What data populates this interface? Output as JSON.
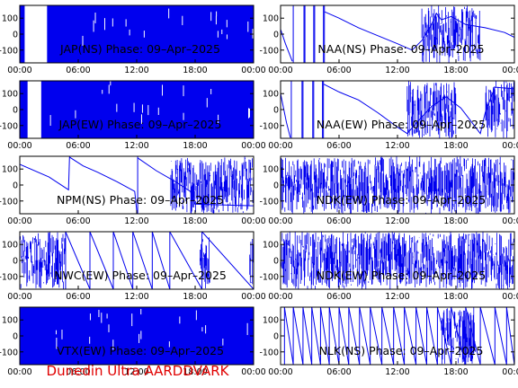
{
  "footer": {
    "label": "Dunedin Ultra AARDDVARK"
  },
  "style": {
    "trace_color": "#0000ee",
    "axis_color": "#000000",
    "footer_color": "#e00000"
  },
  "chart_data": [
    {
      "type": "line",
      "title": "JAP(NS) Phase: 09–Apr–2025",
      "xlabel": "",
      "ylabel": "",
      "x_range": [
        "00:00",
        "24:00"
      ],
      "ylim": [
        -180,
        180
      ],
      "y_ticks": [
        100,
        0,
        -100
      ],
      "x_ticks": [
        "00:00",
        "06:00",
        "12:00",
        "18:00",
        "00:00"
      ],
      "pattern": "noise",
      "noise_spans": [
        [
          0.0,
          0.5
        ],
        [
          2.8,
          24.0
        ]
      ],
      "saturated": true
    },
    {
      "type": "line",
      "title": "NAA(NS) Phase: 09–Apr–2025",
      "xlabel": "",
      "ylabel": "",
      "x_range": [
        "00:00",
        "24:00"
      ],
      "ylim": [
        -180,
        180
      ],
      "y_ticks": [
        100,
        0,
        -100
      ],
      "x_ticks": [
        "00:00",
        "06:00",
        "12:00",
        "18:00",
        "00:00"
      ],
      "pattern": "curve",
      "points": [
        [
          0,
          30
        ],
        [
          0.5,
          -60
        ],
        [
          1.2,
          -170
        ],
        [
          1.3,
          170
        ],
        [
          2.4,
          -175
        ],
        [
          2.5,
          175
        ],
        [
          3.4,
          -170
        ],
        [
          3.5,
          170
        ],
        [
          4.4,
          -175
        ],
        [
          4.5,
          140
        ],
        [
          6,
          100
        ],
        [
          8,
          40
        ],
        [
          10,
          -10
        ],
        [
          12,
          -60
        ],
        [
          13.5,
          -100
        ],
        [
          14.5,
          -40
        ],
        [
          15.5,
          60
        ],
        [
          16,
          130
        ],
        [
          16.5,
          90
        ],
        [
          17.5,
          110
        ],
        [
          19,
          60
        ],
        [
          21,
          40
        ],
        [
          23,
          10
        ],
        [
          24,
          -20
        ]
      ],
      "noise_spans": [
        [
          14.5,
          20.5
        ]
      ]
    },
    {
      "type": "line",
      "title": "JAP(EW) Phase: 09–Apr–2025",
      "xlabel": "",
      "ylabel": "",
      "x_range": [
        "00:00",
        "24:00"
      ],
      "ylim": [
        -180,
        180
      ],
      "y_ticks": [
        100,
        0,
        -100
      ],
      "x_ticks": [
        "00:00",
        "06:00",
        "12:00",
        "18:00",
        "00:00"
      ],
      "pattern": "noise",
      "noise_spans": [
        [
          0.0,
          0.8
        ],
        [
          2.2,
          24.0
        ]
      ],
      "saturated": true
    },
    {
      "type": "line",
      "title": "NAA(EW) Phase: 09–Apr–2025",
      "xlabel": "",
      "ylabel": "",
      "x_range": [
        "00:00",
        "24:00"
      ],
      "ylim": [
        -180,
        180
      ],
      "y_ticks": [
        100,
        0,
        -100
      ],
      "x_ticks": [
        "00:00",
        "06:00",
        "12:00",
        "18:00",
        "00:00"
      ],
      "pattern": "curve",
      "points": [
        [
          0,
          100
        ],
        [
          0.6,
          -80
        ],
        [
          1.0,
          -175
        ],
        [
          1.1,
          175
        ],
        [
          2.2,
          -170
        ],
        [
          2.3,
          170
        ],
        [
          3.3,
          -175
        ],
        [
          3.4,
          170
        ],
        [
          4.3,
          -170
        ],
        [
          4.4,
          160
        ],
        [
          6,
          110
        ],
        [
          8,
          60
        ],
        [
          10,
          -20
        ],
        [
          12,
          -110
        ],
        [
          13,
          -150
        ],
        [
          14,
          -80
        ],
        [
          15.5,
          20
        ],
        [
          17,
          80
        ],
        [
          18.5,
          10
        ],
        [
          19.5,
          -70
        ],
        [
          20.5,
          -150
        ],
        [
          21,
          -20
        ],
        [
          22,
          140
        ],
        [
          24,
          130
        ]
      ],
      "noise_spans": [
        [
          13.0,
          18.0
        ],
        [
          21.0,
          24.0
        ]
      ]
    },
    {
      "type": "line",
      "title": "NPM(NS) Phase: 09–Apr–2025",
      "xlabel": "",
      "ylabel": "",
      "x_range": [
        "00:00",
        "24:00"
      ],
      "ylim": [
        -180,
        180
      ],
      "y_ticks": [
        100,
        0,
        -100
      ],
      "x_ticks": [
        "00:00",
        "06:00",
        "12:00",
        "18:00",
        "00:00"
      ],
      "pattern": "curve",
      "points": [
        [
          0,
          130
        ],
        [
          3,
          50
        ],
        [
          5,
          -30
        ],
        [
          5.1,
          175
        ],
        [
          6.5,
          120
        ],
        [
          8,
          80
        ],
        [
          10,
          20
        ],
        [
          11.8,
          -40
        ],
        [
          12,
          -160
        ],
        [
          12.1,
          170
        ],
        [
          14,
          90
        ],
        [
          16,
          20
        ],
        [
          17.5,
          -40
        ],
        [
          18,
          -120
        ],
        [
          24,
          -130
        ]
      ],
      "noise_spans": [
        [
          15.5,
          24.0
        ]
      ]
    },
    {
      "type": "line",
      "title": "NDK(EW) Phase: 09–Apr–2025",
      "xlabel": "",
      "ylabel": "",
      "x_range": [
        "00:00",
        "24:00"
      ],
      "ylim": [
        -180,
        180
      ],
      "y_ticks": [
        100,
        0,
        -100
      ],
      "x_ticks": [
        "00:00",
        "06:00",
        "12:00",
        "18:00",
        "00:00"
      ],
      "pattern": "noise",
      "noise_spans": [
        [
          0.0,
          24.0
        ]
      ],
      "saturated": false
    },
    {
      "type": "line",
      "title": "NWC(EW) Phase: 09–Apr–2025",
      "xlabel": "",
      "ylabel": "",
      "x_range": [
        "00:00",
        "24:00"
      ],
      "ylim": [
        -180,
        180
      ],
      "y_ticks": [
        100,
        0,
        -100
      ],
      "x_ticks": [
        "00:00",
        "06:00",
        "12:00",
        "18:00",
        "00:00"
      ],
      "pattern": "sawtooth",
      "wraps_hours": [
        4.7,
        7.2,
        9.6,
        11.6,
        13.6,
        15.4,
        18.7
      ],
      "noise_spans": [
        [
          0.0,
          4.7
        ],
        [
          18.5,
          19.5
        ],
        [
          23.6,
          24.0
        ]
      ]
    },
    {
      "type": "line",
      "title": "NDK(EW) Phase: 09–Apr–2025",
      "xlabel": "",
      "ylabel": "",
      "x_range": [
        "00:00",
        "24:00"
      ],
      "ylim": [
        -180,
        180
      ],
      "y_ticks": [
        100,
        0,
        -100
      ],
      "x_ticks": [
        "00:00",
        "06:00",
        "12:00",
        "18:00",
        "00:00"
      ],
      "pattern": "noise",
      "noise_spans": [
        [
          0.0,
          24.0
        ]
      ],
      "saturated": false
    },
    {
      "type": "line",
      "title": "VTX(EW) Phase: 09–Apr–2025",
      "xlabel": "",
      "ylabel": "",
      "x_range": [
        "00:00",
        "24:00"
      ],
      "ylim": [
        -180,
        180
      ],
      "y_ticks": [
        100,
        0,
        -100
      ],
      "x_ticks": [
        "00:00",
        "06:00",
        "12:00",
        "18:00",
        "00:00"
      ],
      "pattern": "noise",
      "noise_spans": [
        [
          0.0,
          24.0
        ]
      ],
      "saturated": true
    },
    {
      "type": "line",
      "title": "NLK(NS) Phase: 09–Apr–2025",
      "xlabel": "",
      "ylabel": "",
      "x_range": [
        "00:00",
        "24:00"
      ],
      "ylim": [
        -180,
        180
      ],
      "y_ticks": [
        100,
        0,
        -100
      ],
      "x_ticks": [
        "00:00",
        "06:00",
        "12:00",
        "18:00",
        "00:00"
      ],
      "pattern": "sawtooth",
      "wraps_hours": [
        0.4,
        1.3,
        2.3,
        3.2,
        4.1,
        5.0,
        6.0,
        7.0,
        8.1,
        9.2,
        10.4,
        11.6,
        12.7,
        13.9,
        15.0,
        16.1,
        17.5,
        19.0,
        20.5,
        22.0,
        23.2
      ],
      "noise_spans": [
        [
          16.5,
          20.0
        ]
      ]
    }
  ]
}
